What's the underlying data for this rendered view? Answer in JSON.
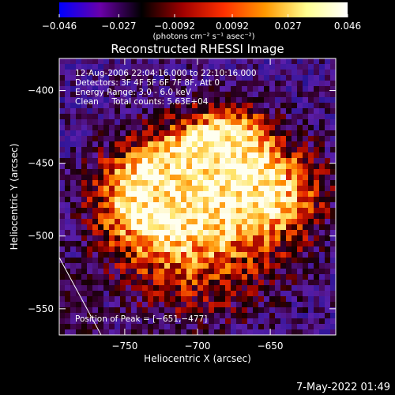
{
  "chart_data": {
    "type": "heatmap",
    "title": "Reconstructed RHESSI Image",
    "xlabel": "Heliocentric X (arcsec)",
    "ylabel": "Heliocentric Y (arcsec)",
    "xlim": [
      -795,
      -605
    ],
    "ylim": [
      -568,
      -378
    ],
    "x_ticks": [
      -750,
      -700,
      -650
    ],
    "x_tick_labels": [
      "−750",
      "−700",
      "−650"
    ],
    "y_ticks": [
      -400,
      -450,
      -500,
      -550
    ],
    "y_tick_labels": [
      "−400",
      "−450",
      "−500",
      "−550"
    ],
    "colorbar": {
      "min": -0.046,
      "max": 0.046,
      "ticks": [
        -0.046,
        -0.027,
        -0.0092,
        0.0092,
        0.027,
        0.046
      ],
      "tick_labels": [
        "−0.046",
        "−0.027",
        "−0.0092",
        "0.0092",
        "0.027",
        "0.046"
      ],
      "unit_label": "(photons cm⁻² s⁻¹ asec⁻²)",
      "colors": [
        "#0000ff",
        "#6a00a8",
        "#000000",
        "#a00000",
        "#ff3000",
        "#ff9900",
        "#ffff90",
        "#ffffff"
      ]
    },
    "annotations": [
      "12-Aug-2006 22:04:16.000 to 22:10:16.000",
      "Detectors: 3F 4F 5F 6F 7F 8F, Att 0",
      "Energy Range: 3.0 - 6.0 keV",
      "Clean     Total counts: 5.63E+04"
    ],
    "peak_label": "Position of Peak = [−651,−477]",
    "peak_position": [
      -651,
      -477
    ],
    "grid": false
  },
  "footer": {
    "timestamp": "7-May-2022 01:49"
  }
}
